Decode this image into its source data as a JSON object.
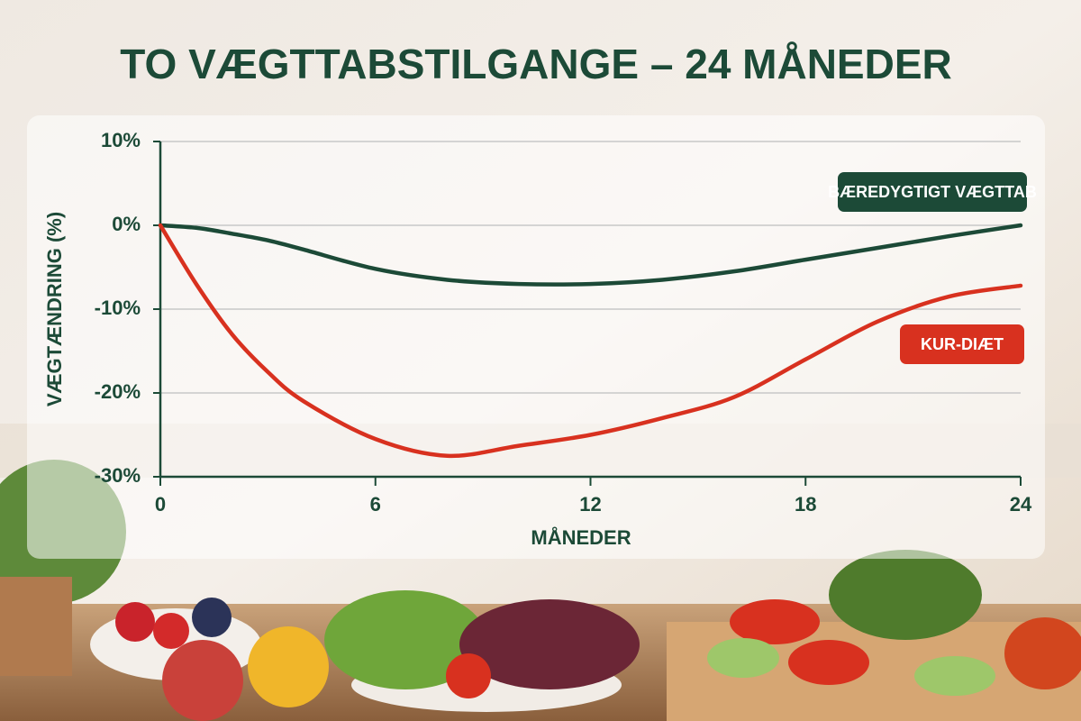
{
  "chart_data": {
    "type": "line",
    "title": "TO VÆGTTABSTILGANGE – 24 MÅNEDER",
    "x_label": "MÅNEDER",
    "y_label": "VÆGTÆNDRING (%)",
    "x": [
      0,
      1,
      2,
      3,
      4,
      6,
      8,
      10,
      12,
      14,
      16,
      18,
      20,
      22,
      24
    ],
    "series": [
      {
        "name": "BÆREDYGTIGT VÆGTTAB",
        "color": "#1c4a37",
        "values": [
          0,
          -0.3,
          -1,
          -1.8,
          -2.9,
          -5.2,
          -6.5,
          -7.0,
          -7.0,
          -6.5,
          -5.5,
          -4.1,
          -2.7,
          -1.3,
          0
        ]
      },
      {
        "name": "KUR-DIÆT",
        "color": "#d8311f",
        "values": [
          0,
          -7,
          -13,
          -17.5,
          -21,
          -25.5,
          -27.5,
          -26.3,
          -25,
          -23,
          -20.5,
          -16,
          -11.5,
          -8.5,
          -7.2
        ]
      }
    ],
    "xlim": [
      0,
      24
    ],
    "xticks": [
      0,
      6,
      12,
      18,
      24
    ],
    "ylim": [
      -30,
      10
    ],
    "yticks": [
      {
        "value": 10,
        "label": "10%"
      },
      {
        "value": 0,
        "label": "0%"
      },
      {
        "value": -10,
        "label": "-10%"
      },
      {
        "value": -20,
        "label": "-20%"
      },
      {
        "value": -30,
        "label": "-30%"
      }
    ],
    "grid": true
  }
}
